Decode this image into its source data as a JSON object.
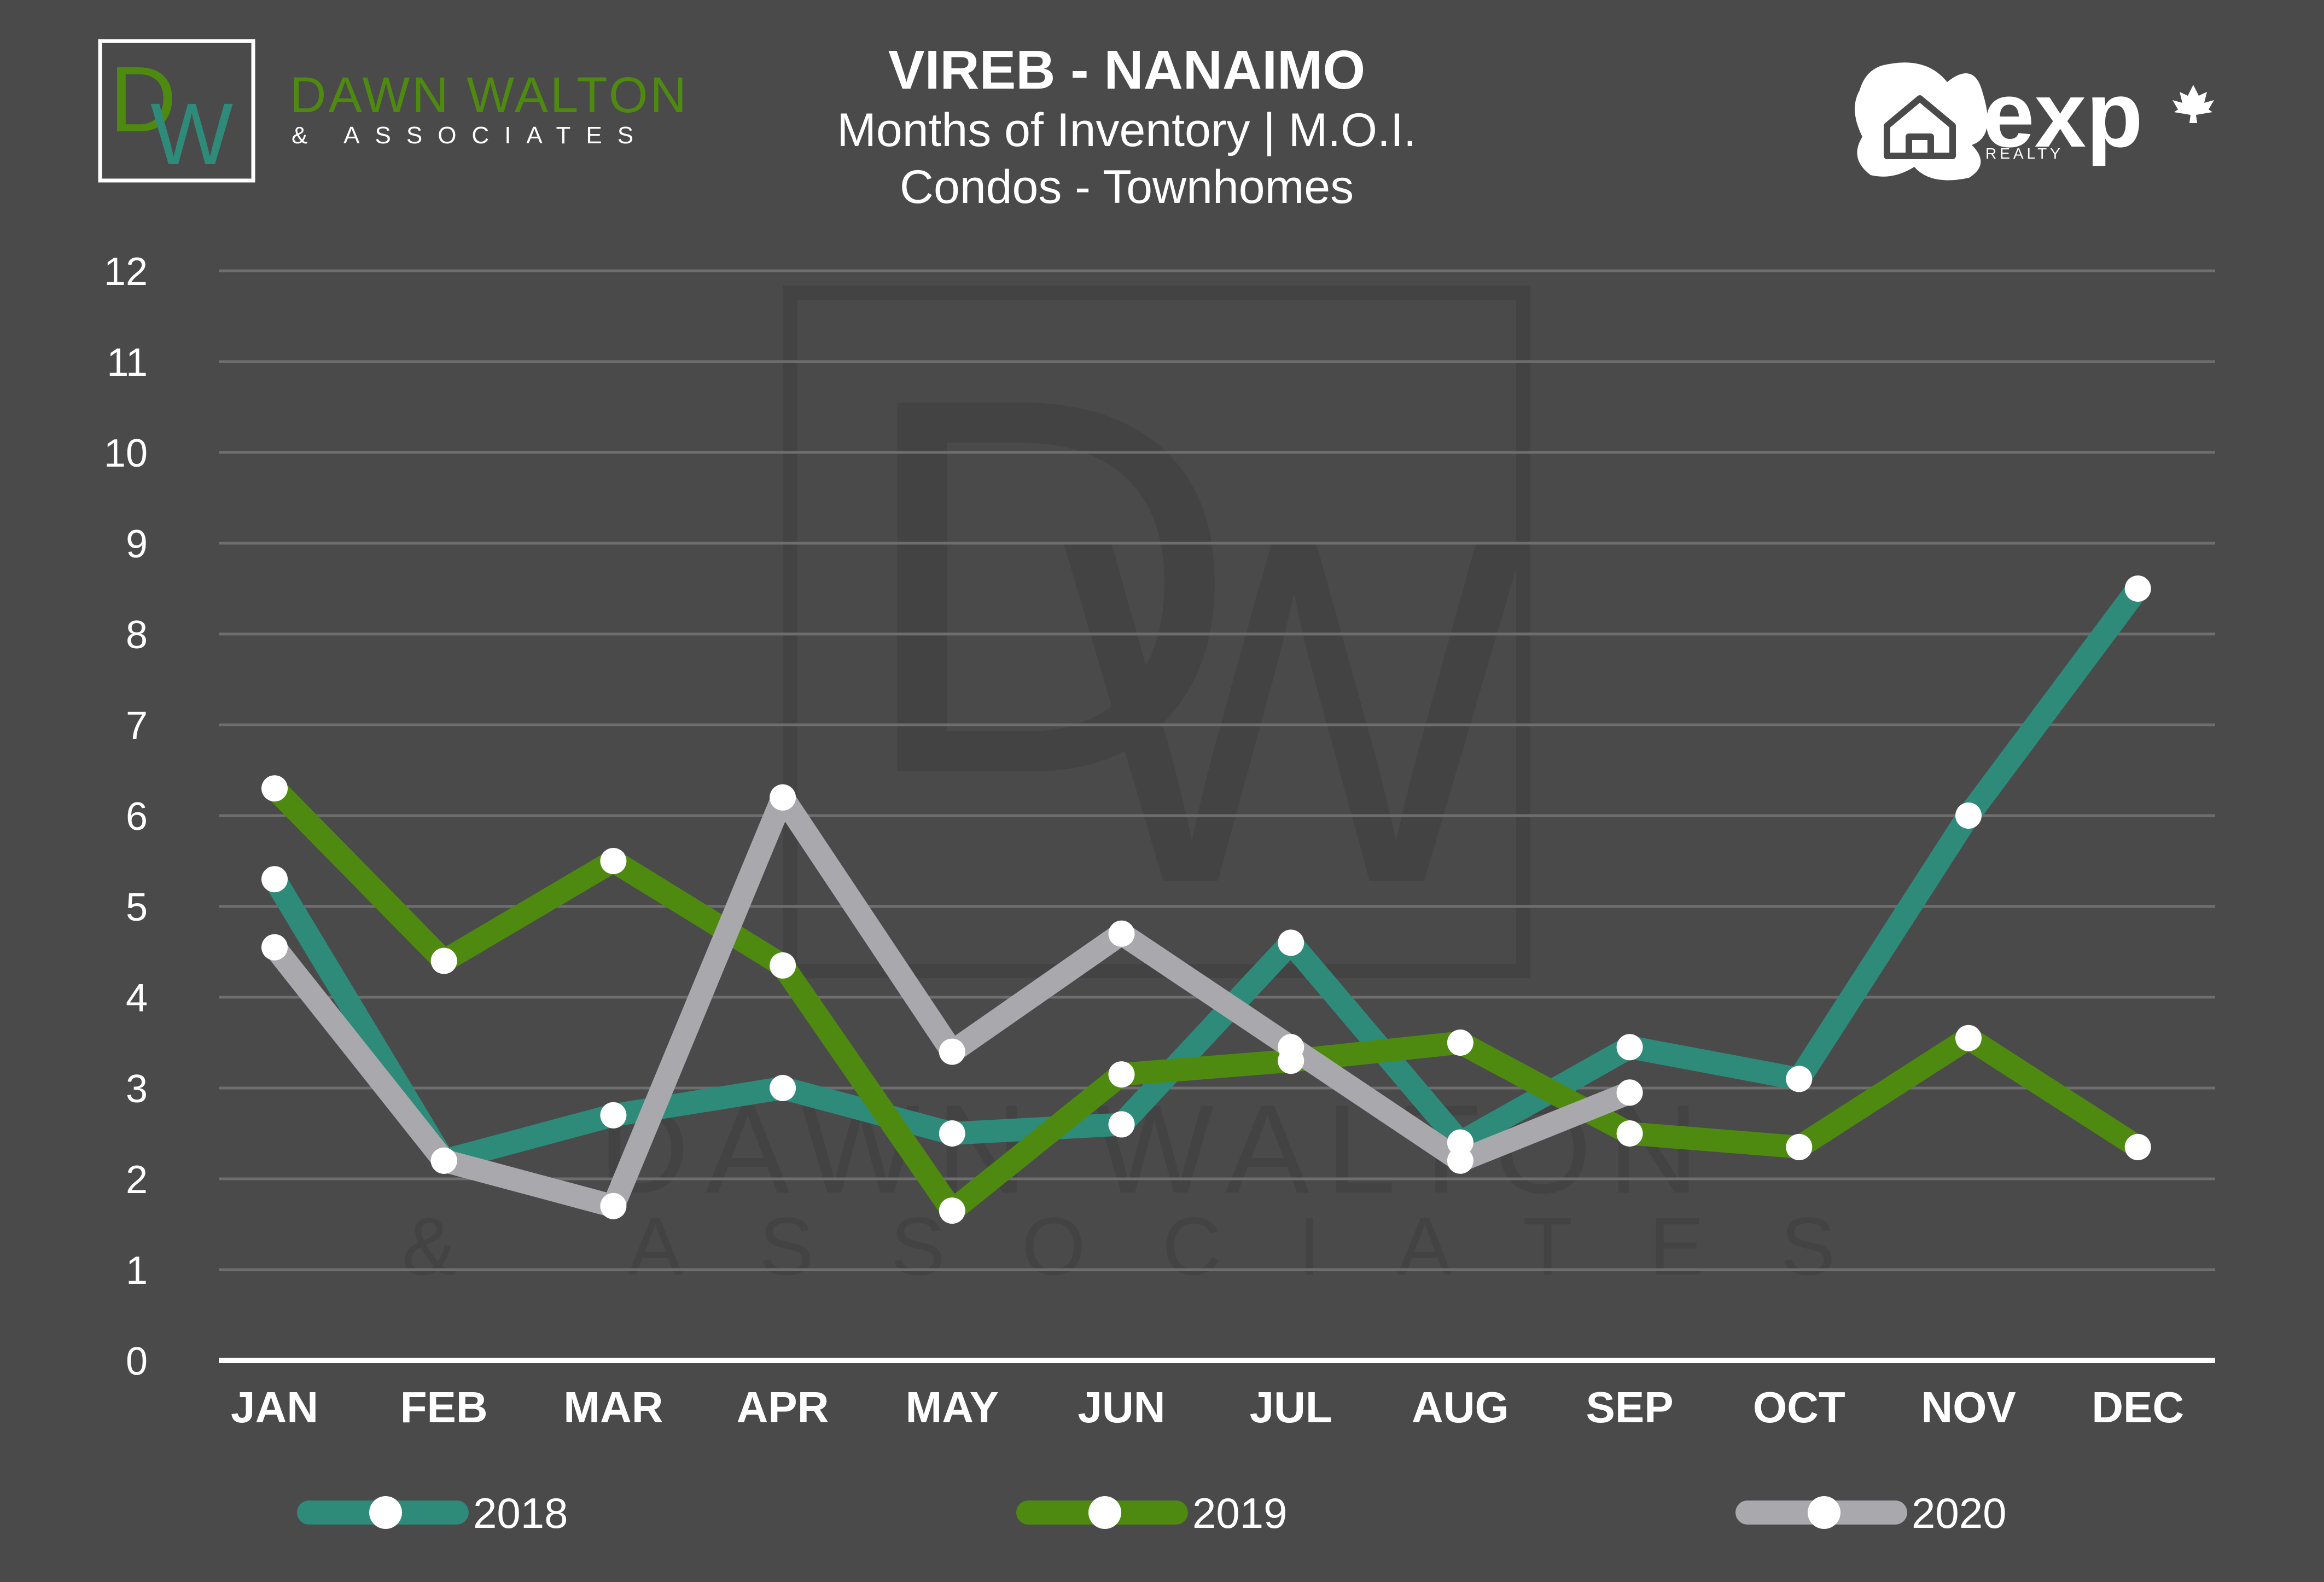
{
  "branding": {
    "left_logo_monogram": "DW",
    "left_logo_name": "DAWN WALTON",
    "left_logo_tagline": "& ASSOCIATES",
    "right_logo_name": "exp",
    "right_logo_tagline": "REALTY",
    "watermark_name": "DAWN WALTON",
    "watermark_tagline": "& ASSOCIATES"
  },
  "colors": {
    "background": "#4a4a4a",
    "grid": "#6e6e6e",
    "axis": "#ffffff",
    "text": "#ffffff",
    "series_2018": "#2e8b7a",
    "series_2019": "#4f8a10",
    "series_2020": "#a9a9ad",
    "marker": "#ffffff"
  },
  "chart_data": {
    "type": "line",
    "title": "VIREB - NANAIMO",
    "subtitle": "Months of Inventory | M.O.I.",
    "subtitle2": "Condos - Townhomes",
    "xlabel": "",
    "ylabel": "",
    "categories": [
      "JAN",
      "FEB",
      "MAR",
      "APR",
      "MAY",
      "JUN",
      "JUL",
      "AUG",
      "SEP",
      "OCT",
      "NOV",
      "DEC"
    ],
    "yticks": [
      "0",
      "1",
      "2",
      "3",
      "4",
      "5",
      "6",
      "7",
      "8",
      "9",
      "10",
      "11",
      "12"
    ],
    "ylim": [
      0,
      12
    ],
    "grid": true,
    "legend_position": "bottom",
    "series": [
      {
        "name": "2018",
        "color": "#2e8b7a",
        "values": [
          5.3,
          2.2,
          2.7,
          3.0,
          2.5,
          2.6,
          4.6,
          2.4,
          3.45,
          3.1,
          6.0,
          8.5
        ]
      },
      {
        "name": "2019",
        "color": "#4f8a10",
        "values": [
          6.3,
          4.4,
          5.5,
          4.35,
          1.65,
          3.15,
          3.3,
          3.5,
          2.5,
          2.35,
          3.55,
          2.35
        ]
      },
      {
        "name": "2020",
        "color": "#a9a9ad",
        "values": [
          4.55,
          2.2,
          1.7,
          6.2,
          3.4,
          4.7,
          3.45,
          2.2,
          2.95,
          null,
          null,
          null
        ]
      }
    ]
  }
}
